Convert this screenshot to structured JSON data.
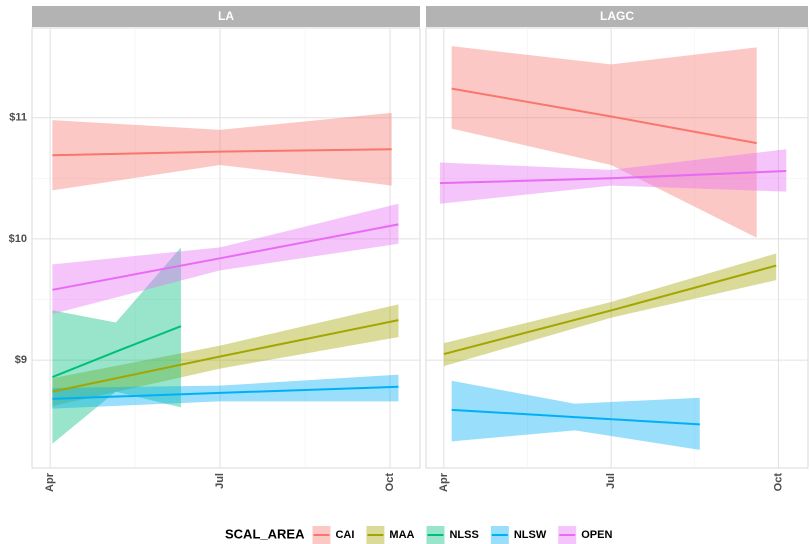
{
  "chart_data": {
    "type": "line",
    "legend_title": "SCAL_AREA",
    "legend_position": "bottom",
    "series": [
      {
        "name": "CAI",
        "color": "#F8766D"
      },
      {
        "name": "MAA",
        "color": "#A3A500"
      },
      {
        "name": "NLSS",
        "color": "#00BF7D"
      },
      {
        "name": "NLSW",
        "color": "#00B0F6"
      },
      {
        "name": "OPEN",
        "color": "#E76BF3"
      }
    ],
    "xlim": [
      3.68,
      10.53
    ],
    "xticks": [
      {
        "value": 4,
        "label": "Apr"
      },
      {
        "value": 7,
        "label": "Jul"
      },
      {
        "value": 10,
        "label": "Oct"
      }
    ],
    "ylim": [
      8.11,
      11.74
    ],
    "yticks": [
      {
        "value": 9,
        "label": "$9"
      },
      {
        "value": 10,
        "label": "$10"
      },
      {
        "value": 11,
        "label": "$11"
      }
    ],
    "grid": true,
    "panels": [
      {
        "title": "LA",
        "lines": [
          {
            "name": "CAI",
            "x": [
              4.04,
              7.0,
              10.03
            ],
            "values": [
              10.69,
              10.72,
              10.74
            ],
            "lower": [
              10.4,
              10.61,
              10.44
            ],
            "upper": [
              10.98,
              10.9,
              11.04
            ]
          },
          {
            "name": "MAA",
            "x": [
              4.04,
              7.0,
              10.15
            ],
            "values": [
              8.74,
              9.03,
              9.33
            ],
            "lower": [
              8.62,
              8.93,
              9.19
            ],
            "upper": [
              8.85,
              9.12,
              9.46
            ]
          },
          {
            "name": "NLSS",
            "x": [
              4.04,
              5.16,
              6.31
            ],
            "values": [
              8.86,
              9.07,
              9.28
            ],
            "lower": [
              8.31,
              8.74,
              8.61
            ],
            "upper": [
              9.41,
              9.31,
              9.93
            ]
          },
          {
            "name": "NLSW",
            "x": [
              4.04,
              7.0,
              10.15
            ],
            "values": [
              8.68,
              8.73,
              8.78
            ],
            "lower": [
              8.6,
              8.66,
              8.66
            ],
            "upper": [
              8.77,
              8.79,
              8.88
            ]
          },
          {
            "name": "OPEN",
            "x": [
              4.04,
              7.0,
              10.15
            ],
            "values": [
              9.58,
              9.84,
              10.12
            ],
            "lower": [
              9.38,
              9.74,
              9.96
            ],
            "upper": [
              9.79,
              9.93,
              10.29
            ]
          }
        ]
      },
      {
        "title": "LAGC",
        "lines": [
          {
            "name": "CAI",
            "x": [
              4.14,
              7.0,
              9.61
            ],
            "values": [
              11.24,
              11.01,
              10.79
            ],
            "lower": [
              10.91,
              10.61,
              10.01
            ],
            "upper": [
              11.59,
              11.44,
              11.58
            ]
          },
          {
            "name": "MAA",
            "x": [
              4.0,
              7.0,
              9.96
            ],
            "values": [
              9.05,
              9.41,
              9.78
            ],
            "lower": [
              8.95,
              9.35,
              9.66
            ],
            "upper": [
              9.14,
              9.48,
              9.88
            ]
          },
          {
            "name": "NLSW",
            "x": [
              4.14,
              6.35,
              8.59
            ],
            "values": [
              8.59,
              8.53,
              8.47
            ],
            "lower": [
              8.33,
              8.42,
              8.26
            ],
            "upper": [
              8.83,
              8.64,
              8.69
            ]
          },
          {
            "name": "OPEN",
            "x": [
              3.93,
              7.0,
              10.14
            ],
            "values": [
              10.46,
              10.5,
              10.56
            ],
            "lower": [
              10.29,
              10.44,
              10.39
            ],
            "upper": [
              10.63,
              10.57,
              10.74
            ]
          }
        ]
      }
    ]
  }
}
